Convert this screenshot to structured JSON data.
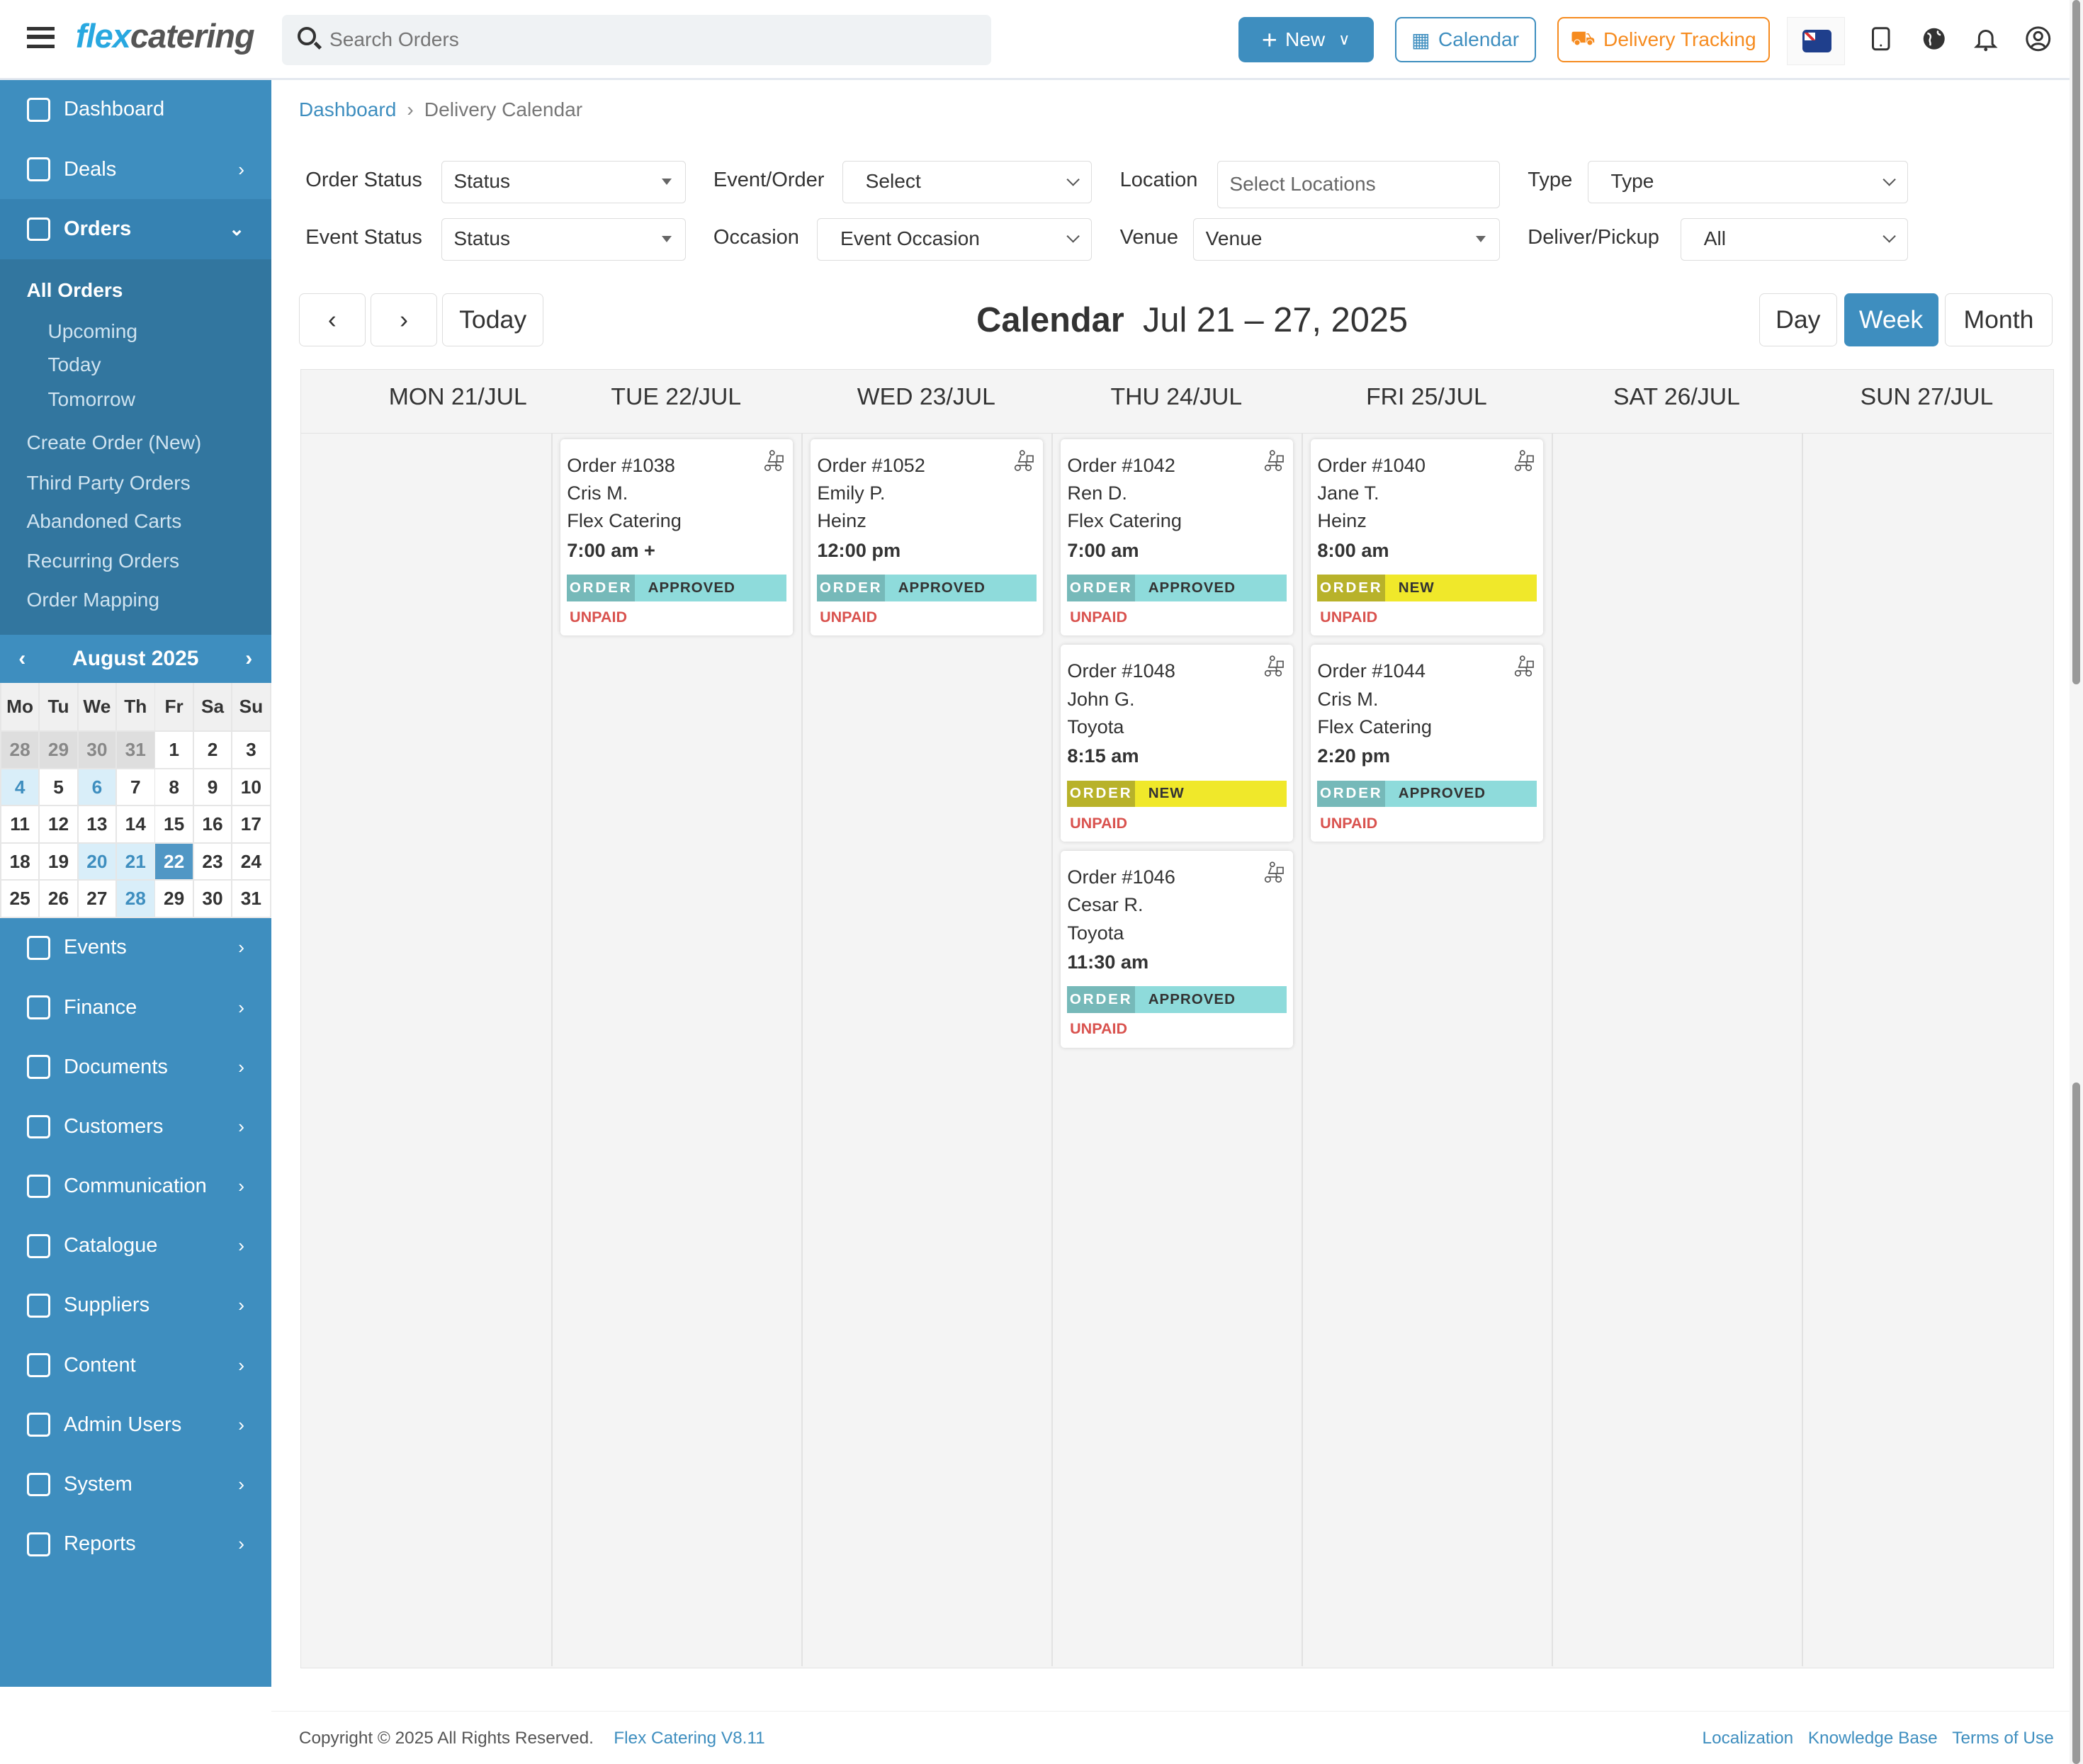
{
  "header": {
    "logo_a": "flex",
    "logo_b": "catering",
    "search_placeholder": "Search Orders",
    "new_label": "New",
    "calendar_label": "Calendar",
    "tracking_label": "Delivery Tracking"
  },
  "sidebar": {
    "items": [
      {
        "label": "Dashboard",
        "icon": "home-icon",
        "chev": ""
      },
      {
        "label": "Deals",
        "icon": "tag-icon",
        "chev": "›"
      },
      {
        "label": "Orders",
        "icon": "bag-icon",
        "chev": "⌄"
      }
    ],
    "orders_sub": {
      "all": "All Orders",
      "upcoming": "Upcoming",
      "today": "Today",
      "tomorrow": "Tomorrow",
      "create": "Create Order (New)",
      "third": "Third Party Orders",
      "abandoned": "Abandoned Carts",
      "recurring": "Recurring Orders",
      "mapping": "Order Mapping"
    },
    "lower": [
      {
        "label": "Events",
        "icon": "calendar-icon"
      },
      {
        "label": "Finance",
        "icon": "bank-icon"
      },
      {
        "label": "Documents",
        "icon": "document-icon"
      },
      {
        "label": "Customers",
        "icon": "user-icon"
      },
      {
        "label": "Communication",
        "icon": "mail-icon"
      },
      {
        "label": "Catalogue",
        "icon": "book-icon"
      },
      {
        "label": "Suppliers",
        "icon": "list-icon"
      },
      {
        "label": "Content",
        "icon": "file-icon"
      },
      {
        "label": "Admin Users",
        "icon": "user-circle-icon"
      },
      {
        "label": "System",
        "icon": "gauge-icon"
      },
      {
        "label": "Reports",
        "icon": "bar-chart-icon"
      }
    ]
  },
  "mini_calendar": {
    "title": "August 2025",
    "weekdays": [
      "Mo",
      "Tu",
      "We",
      "Th",
      "Fr",
      "Sa",
      "Su"
    ],
    "days": [
      [
        "28",
        "o"
      ],
      [
        "29",
        "o"
      ],
      [
        "30",
        "o"
      ],
      [
        "31",
        "o"
      ],
      [
        "1",
        ""
      ],
      [
        "2",
        ""
      ],
      [
        "3",
        ""
      ],
      [
        "4",
        "e"
      ],
      [
        "5",
        ""
      ],
      [
        "6",
        "e"
      ],
      [
        "7",
        ""
      ],
      [
        "8",
        ""
      ],
      [
        "9",
        ""
      ],
      [
        "10",
        ""
      ],
      [
        "11",
        ""
      ],
      [
        "12",
        ""
      ],
      [
        "13",
        ""
      ],
      [
        "14",
        ""
      ],
      [
        "15",
        ""
      ],
      [
        "16",
        ""
      ],
      [
        "17",
        ""
      ],
      [
        "18",
        ""
      ],
      [
        "19",
        ""
      ],
      [
        "20",
        "e"
      ],
      [
        "21",
        "e"
      ],
      [
        "22",
        "s"
      ],
      [
        "23",
        ""
      ],
      [
        "24",
        ""
      ],
      [
        "25",
        ""
      ],
      [
        "26",
        ""
      ],
      [
        "27",
        ""
      ],
      [
        "28",
        "e"
      ],
      [
        "29",
        ""
      ],
      [
        "30",
        ""
      ],
      [
        "31",
        ""
      ]
    ]
  },
  "breadcrumb": {
    "home": "Dashboard",
    "current": "Delivery Calendar"
  },
  "filters": {
    "order_status": {
      "label": "Order Status",
      "value": "Status"
    },
    "event_order": {
      "label": "Event/Order",
      "value": "Select"
    },
    "location": {
      "label": "Location",
      "value": "Select Locations"
    },
    "type": {
      "label": "Type",
      "value": "Type"
    },
    "event_status": {
      "label": "Event Status",
      "value": "Status"
    },
    "occasion": {
      "label": "Occasion",
      "value": "Event Occasion"
    },
    "venue": {
      "label": "Venue",
      "value": "Venue"
    },
    "deliver": {
      "label": "Deliver/Pickup",
      "value": "All"
    }
  },
  "calendar": {
    "prev": "‹",
    "next": "›",
    "today": "Today",
    "title": "Calendar",
    "range": "Jul 21 – 27, 2025",
    "views": [
      "Day",
      "Week",
      "Month"
    ],
    "active_view": "Week",
    "days": [
      "MON 21/JUL",
      "TUE 22/JUL",
      "WED 23/JUL",
      "THU 24/JUL",
      "FRI 25/JUL",
      "SAT 26/JUL",
      "SUN 27/JUL"
    ],
    "orders": [
      {
        "day": 1,
        "slot": 0,
        "order": "Order #1038",
        "customer": "Cris M.",
        "company": "Flex Catering",
        "time": "7:00 am +",
        "badge_key": "ORDER",
        "status": "APPROVED",
        "payment": "UNPAID"
      },
      {
        "day": 2,
        "slot": 0,
        "order": "Order #1052",
        "customer": "Emily P.",
        "company": "Heinz",
        "time": "12:00 pm",
        "badge_key": "ORDER",
        "status": "APPROVED",
        "payment": "UNPAID"
      },
      {
        "day": 3,
        "slot": 0,
        "order": "Order #1042",
        "customer": "Ren D.",
        "company": "Flex Catering",
        "time": "7:00 am",
        "badge_key": "ORDER",
        "status": "APPROVED",
        "payment": "UNPAID"
      },
      {
        "day": 3,
        "slot": 1,
        "order": "Order #1048",
        "customer": "John G.",
        "company": "Toyota",
        "time": "8:15 am",
        "badge_key": "ORDER",
        "status": "NEW",
        "payment": "UNPAID"
      },
      {
        "day": 3,
        "slot": 2,
        "order": "Order #1046",
        "customer": "Cesar R.",
        "company": "Toyota",
        "time": "11:30 am",
        "badge_key": "ORDER",
        "status": "APPROVED",
        "payment": "UNPAID"
      },
      {
        "day": 4,
        "slot": 0,
        "order": "Order #1040",
        "customer": "Jane T.",
        "company": "Heinz",
        "time": "8:00 am",
        "badge_key": "ORDER",
        "status": "NEW",
        "payment": "UNPAID"
      },
      {
        "day": 4,
        "slot": 1,
        "order": "Order #1044",
        "customer": "Cris M.",
        "company": "Flex Catering",
        "time": "2:20 pm",
        "badge_key": "ORDER",
        "status": "APPROVED",
        "payment": "UNPAID"
      }
    ]
  },
  "footer": {
    "copyright": "Copyright © 2025 All Rights Reserved.",
    "version": "Flex Catering V8.11",
    "links": [
      "Localization",
      "Knowledge Base",
      "Terms of Use"
    ]
  },
  "colors": {
    "primary": "#3e8ebf",
    "orange": "#f68b1f",
    "approved": "#8edbdb",
    "new": "#f0e82a",
    "unpaid": "#d9534f"
  }
}
